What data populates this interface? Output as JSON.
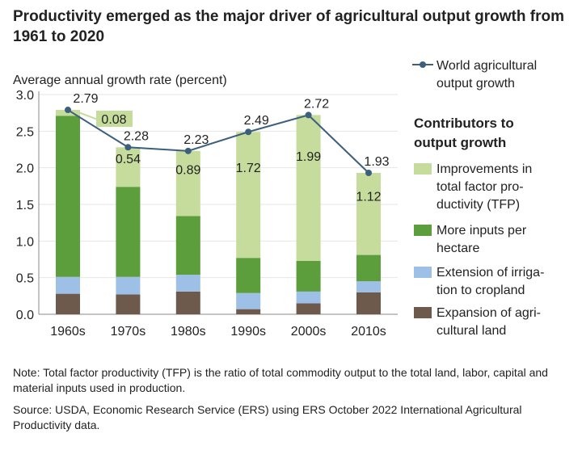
{
  "title": "Productivity emerged as the major driver of agricultural output growth from 1961 to 2020",
  "note": "Note: Total factor productivity (TFP) is the ratio of total commodity output to the total land, labor, capital and material inputs used in production.",
  "source": "Source: USDA, Economic Research Service (ERS) using ERS October 2022 International Agricultural Productivity data.",
  "chart_data": {
    "type": "bar",
    "stacked": true,
    "ylabel": "Average annual growth rate (percent)",
    "ylim": [
      0,
      3.0
    ],
    "yticks": [
      "0.0",
      "0.5",
      "1.0",
      "1.5",
      "2.0",
      "2.5",
      "3.0"
    ],
    "grid": true,
    "legend_placement": "right",
    "categories": [
      "1960s",
      "1970s",
      "1980s",
      "1990s",
      "2000s",
      "2010s"
    ],
    "legend_heading": "Contributors to output growth",
    "series": [
      {
        "name": "Expansion of agricultural land",
        "color": "#6d5a4d",
        "values": [
          0.28,
          0.27,
          0.31,
          0.07,
          0.15,
          0.3
        ]
      },
      {
        "name": "Extension of irrigation to cropland",
        "color": "#9ec0e6",
        "values": [
          0.23,
          0.24,
          0.23,
          0.22,
          0.16,
          0.15
        ]
      },
      {
        "name": "More inputs per hectare",
        "color": "#5b9e3b",
        "values": [
          2.2,
          1.23,
          0.8,
          0.48,
          0.42,
          0.36
        ]
      },
      {
        "name": "Improvements in total factor productivity (TFP)",
        "color": "#c6dc9c",
        "values": [
          0.08,
          0.54,
          0.89,
          1.72,
          1.99,
          1.12
        ],
        "labels": [
          "0.08",
          "0.54",
          "0.89",
          "1.72",
          "1.99",
          "1.12"
        ]
      }
    ],
    "line": {
      "name": "World agricultural output growth",
      "color": "#3d5f7e",
      "values": [
        2.79,
        2.28,
        2.23,
        2.49,
        2.72,
        1.93
      ],
      "labels": [
        "2.79",
        "2.28",
        "2.23",
        "2.49",
        "2.72",
        "1.93"
      ]
    }
  }
}
